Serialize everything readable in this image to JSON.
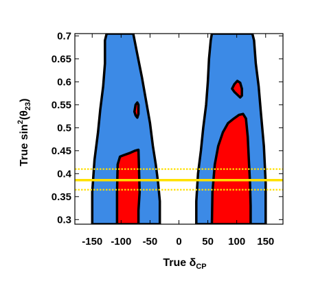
{
  "chart_data": {
    "type": "contour",
    "xlabel": {
      "prefix": "True ",
      "symbol": "δ",
      "sub": "CP"
    },
    "ylabel": {
      "prefix": "True sin",
      "sup": "2",
      "mid": "(θ",
      "sub": "23",
      "suffix": ")"
    },
    "xlim": [
      -180,
      180
    ],
    "ylim": [
      0.29,
      0.705
    ],
    "xticks": [
      -150,
      -100,
      -50,
      0,
      50,
      100,
      150
    ],
    "xtick_labels": [
      "-150",
      "-100",
      "-50",
      "0",
      "50",
      "100",
      "150"
    ],
    "yticks": [
      0.3,
      0.35,
      0.4,
      0.45,
      0.5,
      0.55,
      0.6,
      0.65,
      0.7
    ],
    "ytick_labels": [
      "0.3",
      "0.35",
      "0.4",
      "0.45",
      "0.5",
      "0.55",
      "0.6",
      "0.65",
      "0.7"
    ],
    "grid": false,
    "colors": {
      "outer_region": "#3c8ae6",
      "inner_region": "#ff0000",
      "contour_line": "#000000",
      "best_fit_line": "#ffe000"
    },
    "regions": [
      {
        "level": "outer",
        "x": [
          -150,
          -150,
          -145,
          -139,
          -135,
          -128,
          -128,
          -110,
          -101,
          -95,
          -88,
          -80,
          -70,
          -62,
          -57,
          -52,
          -47,
          -42,
          -38,
          -33,
          -33,
          -40,
          -47,
          -55,
          -60,
          -64,
          -66,
          -68,
          -70,
          -70,
          -150
        ]
      },
      {
        "level": "outer",
        "y": [
          0.29,
          0.37,
          0.43,
          0.5,
          0.56,
          0.61,
          0.69,
          0.705,
          0.705,
          0.705,
          0.705,
          0.705,
          0.705,
          0.705,
          0.705,
          0.705,
          0.67,
          0.6,
          0.52,
          0.45,
          0.37,
          0.33,
          0.29,
          0.29,
          0.29,
          0.29,
          0.29,
          0.29,
          0.29,
          0.29,
          0.29
        ]
      }
    ],
    "contours": [
      {
        "name": "outer-left",
        "level": "outer",
        "x": [
          -150,
          -150,
          -146,
          -140,
          -136,
          -131,
          -128,
          -128,
          -125,
          -120,
          -85,
          -79,
          -72,
          -64,
          -57,
          -50,
          -45,
          -40,
          -36,
          -33,
          -33,
          -40
        ],
        "y": [
          0.29,
          0.36,
          0.43,
          0.49,
          0.54,
          0.59,
          0.64,
          0.69,
          0.705,
          0.705,
          0.705,
          0.705,
          0.66,
          0.61,
          0.56,
          0.51,
          0.46,
          0.42,
          0.38,
          0.34,
          0.29,
          0.29
        ]
      },
      {
        "name": "outer-right",
        "level": "outer",
        "x": [
          30,
          30,
          33,
          38,
          42,
          47,
          50,
          52,
          55,
          57,
          127,
          130,
          133,
          138,
          142,
          147,
          150,
          150
        ],
        "y": [
          0.29,
          0.34,
          0.4,
          0.45,
          0.5,
          0.55,
          0.6,
          0.65,
          0.69,
          0.705,
          0.705,
          0.69,
          0.64,
          0.59,
          0.53,
          0.46,
          0.38,
          0.29
        ]
      },
      {
        "name": "inner-left-lower",
        "level": "inner",
        "x": [
          -107,
          -107,
          -106,
          -102,
          -96,
          -85,
          -76,
          -70,
          -69,
          -68,
          -70,
          -70
        ],
        "y": [
          0.29,
          0.36,
          0.42,
          0.437,
          0.44,
          0.445,
          0.45,
          0.452,
          0.41,
          0.36,
          0.32,
          0.29
        ]
      },
      {
        "name": "inner-left-island",
        "level": "inner",
        "x": [
          -77,
          -75,
          -72,
          -70,
          -70,
          -72,
          -75,
          -77
        ],
        "y": [
          0.535,
          0.55,
          0.555,
          0.55,
          0.53,
          0.522,
          0.527,
          0.535
        ]
      },
      {
        "name": "inner-right-lower",
        "level": "inner",
        "x": [
          57,
          58,
          62,
          68,
          76,
          85,
          95,
          104,
          111,
          116,
          119,
          121,
          123,
          124,
          124
        ],
        "y": [
          0.29,
          0.36,
          0.42,
          0.46,
          0.49,
          0.51,
          0.52,
          0.528,
          0.53,
          0.52,
          0.48,
          0.43,
          0.38,
          0.33,
          0.29
        ]
      },
      {
        "name": "inner-right-island",
        "level": "inner",
        "x": [
          92,
          96,
          101,
          106,
          109,
          109,
          106,
          101,
          96,
          92
        ],
        "y": [
          0.585,
          0.595,
          0.602,
          0.598,
          0.585,
          0.57,
          0.566,
          0.572,
          0.578,
          0.585
        ]
      }
    ],
    "reference_lines": [
      {
        "name": "best-fit",
        "y": 0.386,
        "style": "solid"
      },
      {
        "name": "band-upper",
        "y": 0.41,
        "style": "dotted"
      },
      {
        "name": "band-lower",
        "y": 0.365,
        "style": "dotted"
      }
    ]
  }
}
